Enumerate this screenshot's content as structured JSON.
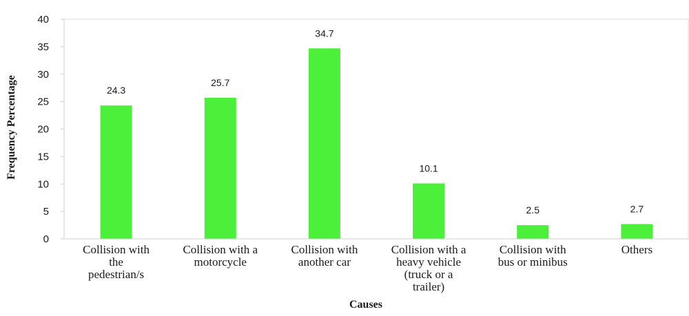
{
  "chart_data": {
    "type": "bar",
    "title": "",
    "xlabel": "Causes",
    "ylabel": "Frequency Percentage",
    "ylim": [
      0,
      40
    ],
    "yticks": [
      0,
      5,
      10,
      15,
      20,
      25,
      30,
      35,
      40
    ],
    "grid": false,
    "legend": "none",
    "bar_color": "#4cf03a",
    "categories": [
      [
        "Collision with",
        "the",
        "pedestrian/s"
      ],
      [
        "Collision with a",
        "motorcycle"
      ],
      [
        "Collision with",
        "another car"
      ],
      [
        "Collision with a",
        "heavy vehicle",
        "(truck or a",
        "trailer)"
      ],
      [
        "Collision with",
        "bus or minibus"
      ],
      [
        "Others"
      ]
    ],
    "values": [
      24.3,
      25.7,
      34.7,
      10.1,
      2.5,
      2.7
    ],
    "data_labels": [
      "24.3",
      "25.7",
      "34.7",
      "10.1",
      "2.5",
      "2.7"
    ]
  }
}
